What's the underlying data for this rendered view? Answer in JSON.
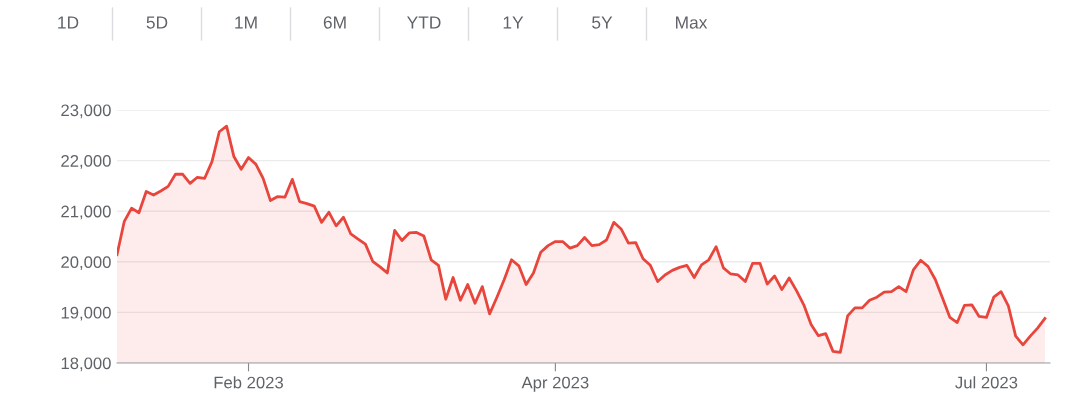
{
  "chart_data": {
    "type": "area",
    "annotations": [
      "1D",
      "5D",
      "1M",
      "6M",
      "YTD",
      "1Y",
      "5Y",
      "Max"
    ],
    "categories": [
      null,
      null,
      null,
      null,
      null,
      null,
      null,
      null,
      null,
      null,
      null,
      null,
      null,
      null,
      null,
      null,
      null,
      null,
      "Feb 2023",
      null,
      null,
      null,
      null,
      null,
      null,
      null,
      null,
      null,
      null,
      null,
      null,
      null,
      null,
      null,
      null,
      null,
      null,
      null,
      null,
      null,
      null,
      null,
      null,
      null,
      null,
      null,
      null,
      null,
      null,
      null,
      null,
      null,
      null,
      null,
      null,
      null,
      null,
      null,
      null,
      null,
      "Apr 2023",
      null,
      null,
      null,
      null,
      null,
      null,
      null,
      null,
      null,
      null,
      null,
      null,
      null,
      null,
      null,
      null,
      null,
      null,
      null,
      null,
      null,
      null,
      null,
      null,
      null,
      null,
      null,
      null,
      null,
      null,
      null,
      null,
      null,
      null,
      null,
      null,
      null,
      null,
      null,
      null,
      null,
      null,
      null,
      null,
      null,
      null,
      null,
      null,
      null,
      null,
      null,
      null,
      null,
      null,
      null,
      null,
      null,
      null,
      "Jul 2023",
      null,
      null,
      null,
      null,
      null,
      null,
      null,
      null
    ],
    "series": [
      {
        "color": "#e8453c",
        "values": [
          20140,
          20800,
          21060,
          20970,
          21390,
          21320,
          21400,
          21490,
          21730,
          21730,
          21550,
          21670,
          21650,
          21980,
          22570,
          22680,
          22080,
          21830,
          22060,
          21930,
          21650,
          21210,
          21290,
          21280,
          21630,
          21190,
          21150,
          21100,
          20780,
          20980,
          20710,
          20880,
          20550,
          20450,
          20350,
          20010,
          19900,
          19780,
          20620,
          20420,
          20570,
          20580,
          20510,
          20040,
          19930,
          19260,
          19690,
          19240,
          19550,
          19180,
          19510,
          18970,
          19300,
          19650,
          20040,
          19920,
          19550,
          19780,
          20190,
          20320,
          20400,
          20400,
          20270,
          20320,
          20480,
          20320,
          20340,
          20430,
          20780,
          20650,
          20370,
          20380,
          20060,
          19930,
          19610,
          19740,
          19830,
          19890,
          19930,
          19690,
          19940,
          20040,
          20300,
          19880,
          19760,
          19740,
          19610,
          19970,
          19970,
          19560,
          19720,
          19450,
          19680,
          19430,
          19150,
          18760,
          18540,
          18580,
          18230,
          18210,
          18930,
          19090,
          19090,
          19240,
          19300,
          19400,
          19410,
          19510,
          19410,
          19840,
          20030,
          19910,
          19650,
          19280,
          18900,
          18800,
          19140,
          19150,
          18920,
          18900,
          19300,
          19410,
          19130,
          18530,
          18360,
          18530,
          18690,
          18880
        ]
      }
    ],
    "ylim": [
      18000,
      23000
    ],
    "yticks": [
      {
        "value": 18000,
        "label": "18,000"
      },
      {
        "value": 19000,
        "label": "19,000"
      },
      {
        "value": 20000,
        "label": "20,000"
      },
      {
        "value": 21000,
        "label": "21,000"
      },
      {
        "value": 22000,
        "label": "22,000"
      },
      {
        "value": 23000,
        "label": "23,000"
      }
    ],
    "grid": "y",
    "marker": "none",
    "line_style": "solid"
  }
}
